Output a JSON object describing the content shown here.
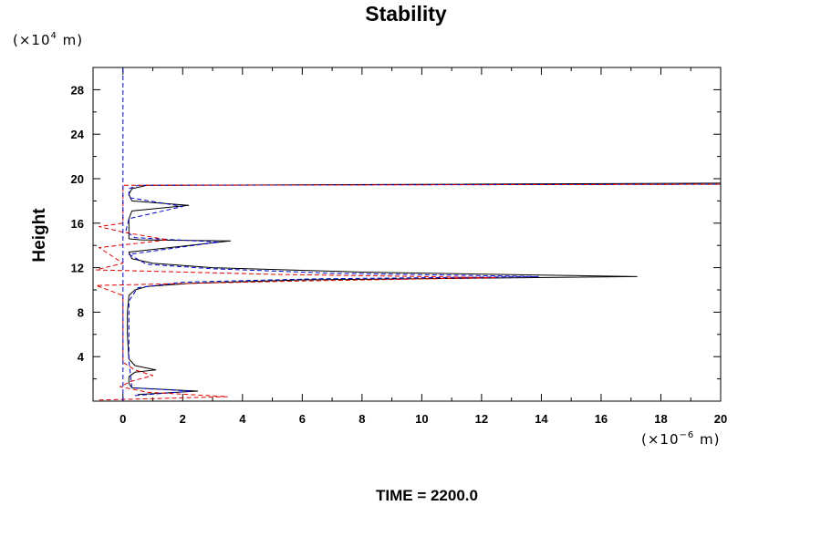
{
  "chart_data": {
    "type": "line",
    "title": "Stability",
    "ylabel": "Height",
    "y_unit": {
      "prefix": "(×10",
      "exp": "4",
      "suffix": " m)"
    },
    "x_unit": {
      "prefix": "(×10",
      "exp": "−6",
      "suffix": " m)"
    },
    "xlim": [
      -1,
      20
    ],
    "ylim": [
      0,
      30
    ],
    "x_ticks": [
      0,
      2,
      4,
      6,
      8,
      10,
      12,
      14,
      16,
      18,
      20
    ],
    "y_ticks": [
      4,
      8,
      12,
      16,
      20,
      24,
      28
    ],
    "grid": false,
    "legend": "none",
    "caption": "TIME = 2200.0",
    "series": [
      {
        "color": "#000000",
        "style": "solid",
        "x": [
          0.5,
          2.5,
          0.3,
          0.2,
          0.2,
          0.3,
          0.4,
          1.1,
          0.4,
          0.2,
          0.18,
          0.15,
          0.15,
          0.2,
          0.4,
          0.8,
          2.3,
          6.0,
          13.5,
          17.2,
          13.5,
          8.0,
          3.0,
          1.0,
          0.3,
          0.2,
          3.6,
          0.6,
          0.2,
          0.2,
          0.2,
          0.3,
          2.2,
          0.3,
          0.2,
          0.3,
          0.8,
          10.6,
          20
        ],
        "y": [
          0.6,
          0.9,
          1.2,
          1.6,
          2.2,
          2.4,
          2.6,
          2.8,
          3.2,
          3.8,
          4.5,
          6.0,
          8.0,
          9.5,
          10.0,
          10.3,
          10.6,
          10.9,
          11.1,
          11.2,
          11.35,
          11.6,
          12.0,
          12.4,
          12.8,
          13.4,
          14.4,
          14.5,
          14.6,
          15.6,
          16.4,
          17.1,
          17.6,
          18.0,
          18.6,
          19.1,
          19.4,
          19.5,
          19.6
        ]
      },
      {
        "color": "#0000cc",
        "style": "dashed",
        "x": [
          0.4,
          2.3,
          0.3,
          0.25,
          0.2,
          0.2,
          0.2,
          0.5,
          2.0,
          6.5,
          13.9,
          7.0,
          3.0,
          0.8,
          0.2,
          3.2,
          0.4,
          0.1,
          0.2,
          2.0,
          0.2,
          0.2,
          0.5,
          20
        ],
        "y": [
          0.5,
          0.9,
          1.2,
          2.4,
          3.6,
          6.0,
          9.0,
          10.2,
          10.7,
          11.0,
          11.2,
          11.5,
          11.9,
          12.3,
          13.2,
          14.3,
          14.7,
          15.3,
          16.4,
          17.5,
          18.3,
          19.1,
          19.4,
          19.5
        ]
      },
      {
        "color": "#dd0000",
        "style": "dashed",
        "x": [
          -0.8,
          3.5,
          0.8,
          -0.1,
          0.3,
          1.0,
          0.4,
          0.0,
          0.0,
          -0.9,
          6.0,
          12.5,
          5.0,
          -0.9,
          0.0,
          -0.8,
          1.5,
          0.0,
          -0.8,
          0.0,
          0.0,
          20
        ],
        "y": [
          0.1,
          0.4,
          0.8,
          1.3,
          1.8,
          2.3,
          2.8,
          3.5,
          9.5,
          10.4,
          10.8,
          11.1,
          11.4,
          11.8,
          12.4,
          13.8,
          14.5,
          15.2,
          15.7,
          16.0,
          19.4,
          19.5
        ]
      },
      {
        "color": "#0000cc",
        "style": "dashed",
        "x": [
          0,
          0
        ],
        "y": [
          0,
          30
        ]
      }
    ]
  }
}
